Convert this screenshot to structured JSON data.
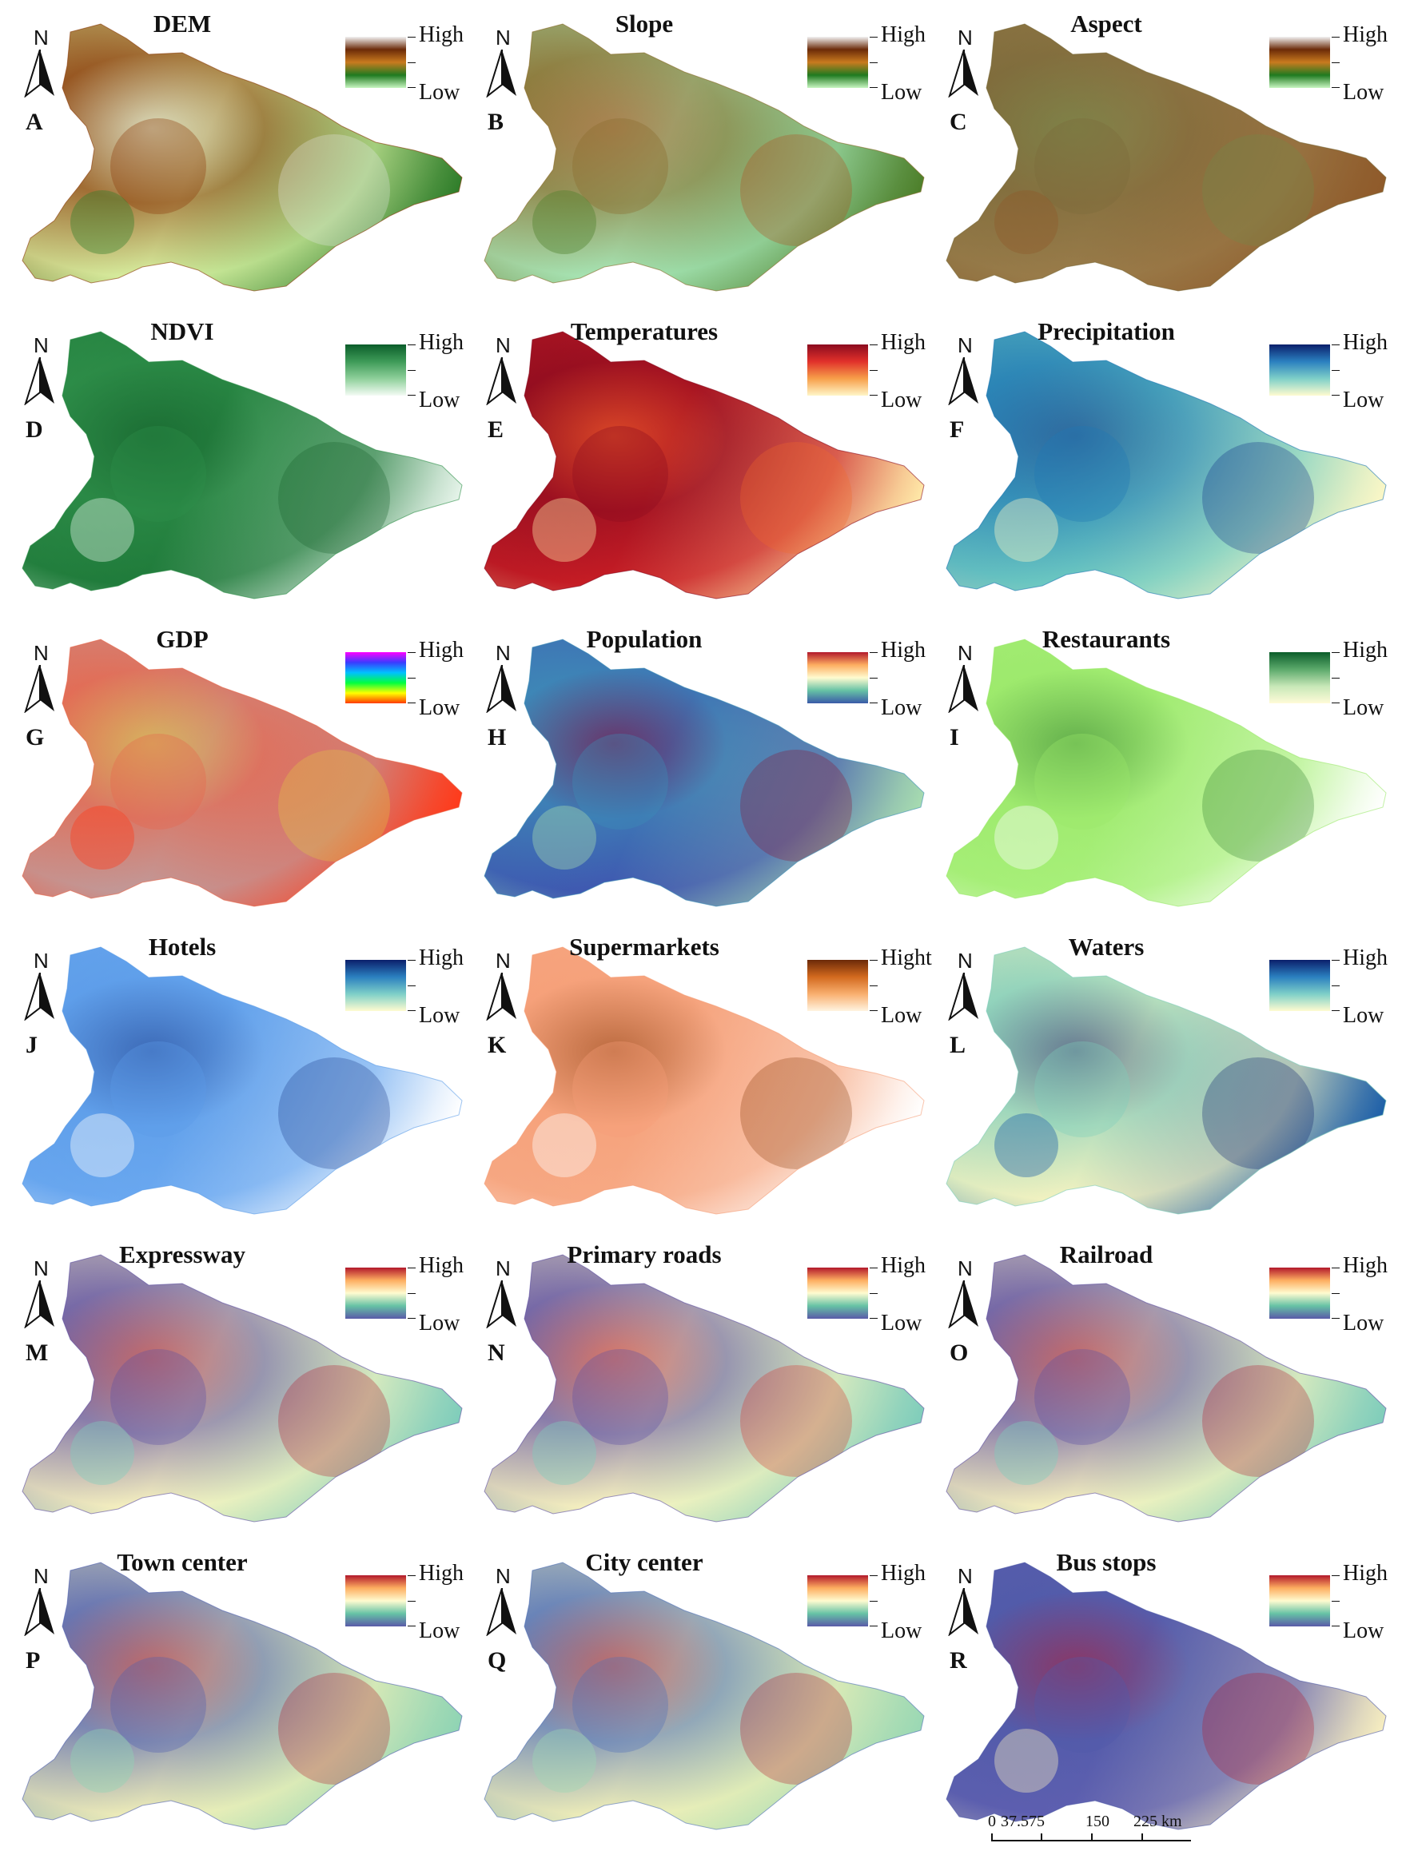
{
  "panels": [
    {
      "letter": "A",
      "title": "DEM",
      "high": "High",
      "low": "Low",
      "legend_colors": [
        "#f2f2f2",
        "#6b2a08",
        "#c97a1f",
        "#1f7a1f",
        "#c7f5c0"
      ],
      "map_colors": [
        "#d9f3a3",
        "#8b3a0a",
        "#2f7d2a",
        "#e8e8e8"
      ]
    },
    {
      "letter": "B",
      "title": "Slope",
      "high": "High",
      "low": "Low",
      "legend_colors": [
        "#f2f2f2",
        "#6b2a08",
        "#c97a1f",
        "#1f7a1f",
        "#c7f5c0"
      ],
      "map_colors": [
        "#a7e8b8",
        "#8a6a2a",
        "#4d7f2a",
        "#b24a1a"
      ]
    },
    {
      "letter": "C",
      "title": "Aspect",
      "high": "High",
      "low": "Low",
      "legend_colors": [
        "#f2f2f2",
        "#6b2a08",
        "#c97a1f",
        "#1f7a1f",
        "#c7f5c0"
      ],
      "map_colors": [
        "#9a7c4a",
        "#7b6a3a",
        "#8f5a2a",
        "#6f8a4a"
      ]
    },
    {
      "letter": "D",
      "title": "NDVI",
      "high": "High",
      "low": "Low",
      "legend_colors": [
        "#0b5d2a",
        "#3d9a57",
        "#8fd09b",
        "#f4fbf5"
      ],
      "map_colors": [
        "#1f7a3a",
        "#2f8f4a",
        "#e6f4ea",
        "#16602c"
      ]
    },
    {
      "letter": "E",
      "title": "Temperatures",
      "high": "High",
      "low": "Low",
      "legend_colors": [
        "#8b0b1f",
        "#e0302a",
        "#f7a04a",
        "#fff6c8"
      ],
      "map_colors": [
        "#c81d25",
        "#8b0b1f",
        "#ffe9a8",
        "#f26b2a"
      ]
    },
    {
      "letter": "F",
      "title": "Precipitation",
      "high": "High",
      "low": "Low",
      "legend_colors": [
        "#0b1f6b",
        "#2a7fbf",
        "#7fd0c8",
        "#fffbd0"
      ],
      "map_colors": [
        "#6fcbc2",
        "#1f78b4",
        "#fbf7c6",
        "#0c2c84"
      ]
    },
    {
      "letter": "G",
      "title": "GDP",
      "high": "High",
      "low": "Low",
      "legend_colors": [
        "#ff00ff",
        "#3b3bff",
        "#00c0ff",
        "#00ff40",
        "#ffff00",
        "#ff3a00"
      ],
      "map_colors": [
        "#c09a9a",
        "#e8654a",
        "#ff3a1a",
        "#e0d040"
      ]
    },
    {
      "letter": "H",
      "title": "Population",
      "high": "High",
      "low": "Low",
      "legend_colors": [
        "#b2182b",
        "#fdae61",
        "#fffbd0",
        "#66c2a5",
        "#3a5aa8"
      ],
      "map_colors": [
        "#3f56b0",
        "#3d8fb8",
        "#a7dcb0",
        "#8b1030"
      ]
    },
    {
      "letter": "I",
      "title": "Restaurants",
      "high": "High",
      "low": "Low",
      "legend_colors": [
        "#0b5d2a",
        "#5aa86a",
        "#c8e8b8",
        "#fffbd8"
      ],
      "map_colors": [
        "#a8f07a",
        "#9be86a",
        "#ffffff",
        "#2f7d2a"
      ]
    },
    {
      "letter": "J",
      "title": "Hotels",
      "high": "High",
      "low": "Low",
      "legend_colors": [
        "#0b1f6b",
        "#2a7fbf",
        "#7fd0c8",
        "#fffbd0"
      ],
      "map_colors": [
        "#6aa8f0",
        "#5c9ce8",
        "#ffffff",
        "#1a3a8a"
      ]
    },
    {
      "letter": "K",
      "title": "Supermarkets",
      "high": "Hight",
      "low": "Low",
      "legend_colors": [
        "#6b2a08",
        "#d2691e",
        "#f9b070",
        "#fff4e0"
      ],
      "map_colors": [
        "#f7a984",
        "#f59f78",
        "#ffffff",
        "#8b3a0a"
      ]
    },
    {
      "letter": "L",
      "title": "Waters",
      "high": "High",
      "low": "Low",
      "legend_colors": [
        "#0b1f6b",
        "#2a7fbf",
        "#7fd0c8",
        "#fffbd0"
      ],
      "map_colors": [
        "#f6f3c0",
        "#7fcdbb",
        "#1d5fa8",
        "#0b1f6b"
      ]
    },
    {
      "letter": "M",
      "title": "Expressway",
      "high": "High",
      "low": "Low",
      "legend_colors": [
        "#b2182b",
        "#fdae61",
        "#fffbd0",
        "#66c2a5",
        "#5a5aa8"
      ],
      "map_colors": [
        "#fbf6c0",
        "#5e4fa2",
        "#7fcdbb",
        "#b2182b"
      ]
    },
    {
      "letter": "N",
      "title": "Primary roads",
      "high": "High",
      "low": "Low",
      "legend_colors": [
        "#b2182b",
        "#fdae61",
        "#fffbd0",
        "#66c2a5",
        "#5a5aa8"
      ],
      "map_colors": [
        "#fbf6c0",
        "#5e4fa2",
        "#7fcdbb",
        "#d73027"
      ]
    },
    {
      "letter": "O",
      "title": "Railroad",
      "high": "High",
      "low": "Low",
      "legend_colors": [
        "#b2182b",
        "#fdae61",
        "#fffbd0",
        "#66c2a5",
        "#5a5aa8"
      ],
      "map_colors": [
        "#fbf6c0",
        "#5e4fa2",
        "#7fcdbb",
        "#b2182b"
      ]
    },
    {
      "letter": "P",
      "title": "Town center",
      "high": "High",
      "low": "Low",
      "legend_colors": [
        "#b2182b",
        "#fdae61",
        "#fffbd0",
        "#66c2a5",
        "#5a5aa8"
      ],
      "map_colors": [
        "#f3f1b8",
        "#4f5fb0",
        "#8fd4b4",
        "#b2182b"
      ]
    },
    {
      "letter": "Q",
      "title": "City center",
      "high": "High",
      "low": "Low",
      "legend_colors": [
        "#b2182b",
        "#fdae61",
        "#fffbd0",
        "#66c2a5",
        "#5a5aa8"
      ],
      "map_colors": [
        "#f3f1b8",
        "#4f6fb8",
        "#9ad8b4",
        "#b2182b"
      ]
    },
    {
      "letter": "R",
      "title": "Bus stops",
      "high": "High",
      "low": "Low",
      "legend_colors": [
        "#b2182b",
        "#fdae61",
        "#fffbd0",
        "#66c2a5",
        "#5a5aa8"
      ],
      "map_colors": [
        "#5e5fb0",
        "#4f5aa8",
        "#f7eec0",
        "#b2182b"
      ]
    }
  ],
  "north_label": "N",
  "scale_bar": {
    "labels": [
      "0",
      "37.575",
      "150",
      "225 km"
    ]
  }
}
